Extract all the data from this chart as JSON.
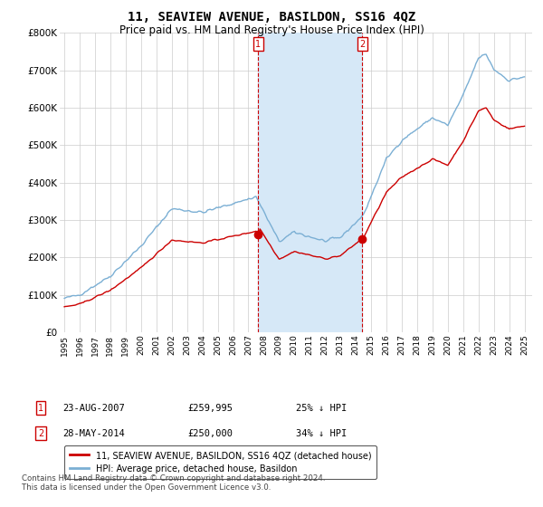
{
  "title": "11, SEAVIEW AVENUE, BASILDON, SS16 4QZ",
  "subtitle": "Price paid vs. HM Land Registry's House Price Index (HPI)",
  "title_fontsize": 10,
  "subtitle_fontsize": 8.5,
  "ylim": [
    0,
    800000
  ],
  "yticks": [
    0,
    100000,
    200000,
    300000,
    400000,
    500000,
    600000,
    700000,
    800000
  ],
  "ytick_labels": [
    "£0",
    "£100K",
    "£200K",
    "£300K",
    "£400K",
    "£500K",
    "£600K",
    "£700K",
    "£800K"
  ],
  "sale1_date_x": 2007.645,
  "sale1_price": 259995,
  "sale2_date_x": 2014.413,
  "sale2_price": 250000,
  "red_line_color": "#cc0000",
  "blue_line_color": "#7bafd4",
  "shade_color": "#d6e8f7",
  "vline_color": "#cc0000",
  "legend_label_red": "11, SEAVIEW AVENUE, BASILDON, SS16 4QZ (detached house)",
  "legend_label_blue": "HPI: Average price, detached house, Basildon",
  "footer": "Contains HM Land Registry data © Crown copyright and database right 2024.\nThis data is licensed under the Open Government Licence v3.0.",
  "annotation1_date": "23-AUG-2007",
  "annotation1_price": "£259,995",
  "annotation1_hpi": "25% ↓ HPI",
  "annotation2_date": "28-MAY-2014",
  "annotation2_price": "£250,000",
  "annotation2_hpi": "34% ↓ HPI",
  "background_color": "#ffffff",
  "xlim_left": 1994.7,
  "xlim_right": 2025.5
}
